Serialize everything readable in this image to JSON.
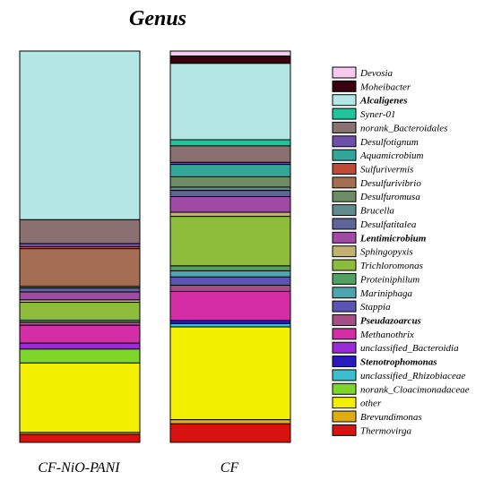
{
  "chart_data": {
    "type": "bar",
    "stacked": true,
    "normalized": true,
    "title": "Genus",
    "categories": [
      "CF-NiO-PANI",
      "CF"
    ],
    "grid": false,
    "legend_position": "right",
    "series": [
      {
        "name": "Devosia",
        "color": "#f9c8ee",
        "bold": false,
        "values": [
          0.0,
          1.2
        ]
      },
      {
        "name": "Moheibacter",
        "color": "#3a0012",
        "bold": false,
        "values": [
          0.0,
          1.8
        ]
      },
      {
        "name": "Alcaligenes",
        "color": "#b5e6e6",
        "bold": true,
        "values": [
          42.5,
          18.5
        ]
      },
      {
        "name": "Syner-01",
        "color": "#1fc49a",
        "bold": false,
        "values": [
          0.0,
          1.5
        ]
      },
      {
        "name": "norank_Bacteroidales",
        "color": "#8a7070",
        "bold": false,
        "values": [
          6.0,
          4.0
        ]
      },
      {
        "name": "Desulfotignum",
        "color": "#6e4fa8",
        "bold": false,
        "values": [
          0.8,
          0.5
        ]
      },
      {
        "name": "Aquamicrobium",
        "color": "#33a69a",
        "bold": false,
        "values": [
          0.0,
          3.0
        ]
      },
      {
        "name": "Sulfurivermis",
        "color": "#c04a35",
        "bold": false,
        "values": [
          0.5,
          0.0
        ]
      },
      {
        "name": "Desulfurivibrio",
        "color": "#a56e52",
        "bold": false,
        "values": [
          9.5,
          0.0
        ]
      },
      {
        "name": "Desulfuromusa",
        "color": "#6e8c64",
        "bold": false,
        "values": [
          0.4,
          2.5
        ]
      },
      {
        "name": "Brucella",
        "color": "#5f8c8c",
        "bold": false,
        "values": [
          0.0,
          0.8
        ]
      },
      {
        "name": "Desulfatitalea",
        "color": "#5e6496",
        "bold": false,
        "values": [
          1.0,
          1.5
        ]
      },
      {
        "name": "Lentimicrobium",
        "color": "#a04aa6",
        "bold": true,
        "values": [
          2.0,
          3.8
        ]
      },
      {
        "name": "Sphingopyxis",
        "color": "#c1b272",
        "bold": false,
        "values": [
          0.6,
          1.0
        ]
      },
      {
        "name": "Trichloromonas",
        "color": "#8cbc3a",
        "bold": false,
        "values": [
          4.5,
          12.0
        ]
      },
      {
        "name": "Proteiniphilum",
        "color": "#52a064",
        "bold": false,
        "values": [
          0.5,
          1.2
        ]
      },
      {
        "name": "Mariniphaga",
        "color": "#4ca6b0",
        "bold": false,
        "values": [
          0.0,
          1.5
        ]
      },
      {
        "name": "Stappia",
        "color": "#5d53b5",
        "bold": false,
        "values": [
          0.0,
          2.0
        ]
      },
      {
        "name": "Pseudazoarcus",
        "color": "#a24f86",
        "bold": true,
        "values": [
          0.8,
          1.5
        ]
      },
      {
        "name": "Methanothrix",
        "color": "#d42ea6",
        "bold": false,
        "values": [
          4.5,
          7.0
        ]
      },
      {
        "name": "unclassified_Bacteroidia",
        "color": "#9a2ad6",
        "bold": false,
        "values": [
          1.5,
          0.0
        ]
      },
      {
        "name": "Stenotrophomonas",
        "color": "#2b19c0",
        "bold": true,
        "values": [
          0.0,
          0.8
        ]
      },
      {
        "name": "unclassified_Rhizobiaceae",
        "color": "#3bbfd0",
        "bold": false,
        "values": [
          0.0,
          0.8
        ]
      },
      {
        "name": "norank_Cloacimonadaceae",
        "color": "#7ed62a",
        "bold": false,
        "values": [
          3.5,
          0.0
        ]
      },
      {
        "name": "other",
        "color": "#f2ef00",
        "bold": false,
        "values": [
          17.5,
          22.5
        ]
      },
      {
        "name": "Brevundimonas",
        "color": "#e0ac14",
        "bold": false,
        "values": [
          0.5,
          1.0
        ]
      },
      {
        "name": "Thermovirga",
        "color": "#d8120e",
        "bold": false,
        "values": [
          2.0,
          4.5
        ]
      }
    ]
  }
}
